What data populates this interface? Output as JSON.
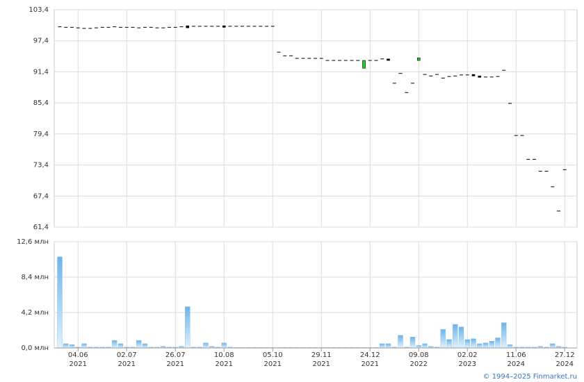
{
  "chart_data": [
    {
      "type": "candlestick",
      "open": [
        100.1,
        100.0,
        100.0,
        99.9,
        99.8,
        99.8,
        99.9,
        100.0,
        100.0,
        100.1,
        100.0,
        100.0,
        100.0,
        99.9,
        100.0,
        100.0,
        99.9,
        99.9,
        100.0,
        100.0,
        100.1,
        100.3,
        100.2,
        100.2,
        100.2,
        100.2,
        100.2,
        100.3,
        100.2,
        100.2,
        100.2,
        100.2,
        100.2,
        100.2,
        100.2,
        100.2,
        95.2,
        94.5,
        94.5,
        94.0,
        94.0,
        94.0,
        94.0,
        94.0,
        93.6,
        93.6,
        93.6,
        93.6,
        93.6,
        93.6,
        92.1,
        93.6,
        93.6,
        93.9,
        93.9,
        89.2,
        91.1,
        87.4,
        89.2,
        93.6,
        90.9,
        90.6,
        90.9,
        90.2,
        90.5,
        90.6,
        90.8,
        90.8,
        90.9,
        90.6,
        90.4,
        90.4,
        90.5,
        91.7,
        85.3,
        79.1,
        79.1,
        74.5,
        74.5,
        72.2,
        72.2,
        69.2,
        64.5,
        72.5
      ],
      "close": [
        100.1,
        100.0,
        100.0,
        99.9,
        99.8,
        99.8,
        99.9,
        100.0,
        100.0,
        100.1,
        100.0,
        100.0,
        100.0,
        99.9,
        100.0,
        100.0,
        99.9,
        99.9,
        100.0,
        100.0,
        100.1,
        99.9,
        100.2,
        100.2,
        100.2,
        100.2,
        100.2,
        100.0,
        100.2,
        100.2,
        100.2,
        100.2,
        100.2,
        100.2,
        100.2,
        100.2,
        95.2,
        94.5,
        94.5,
        94.0,
        94.0,
        94.0,
        94.0,
        94.0,
        93.6,
        93.6,
        93.6,
        93.6,
        93.6,
        93.6,
        93.6,
        93.6,
        93.6,
        93.9,
        93.6,
        89.2,
        91.1,
        87.4,
        89.2,
        94.1,
        90.9,
        90.6,
        90.9,
        90.2,
        90.5,
        90.6,
        90.8,
        90.8,
        90.6,
        90.4,
        90.4,
        90.4,
        90.5,
        91.7,
        85.3,
        79.1,
        79.1,
        74.5,
        74.5,
        72.2,
        72.2,
        69.2,
        64.5,
        72.5
      ],
      "up_color": "#22cc22",
      "down_color": "#000000",
      "ylim": [
        61.4,
        103.4
      ],
      "yticks": [
        {
          "value": 61.4,
          "label": "61,4"
        },
        {
          "value": 67.4,
          "label": "67,4"
        },
        {
          "value": 73.4,
          "label": "73,4"
        },
        {
          "value": 79.4,
          "label": "79,4"
        },
        {
          "value": 85.4,
          "label": "85,4"
        },
        {
          "value": 91.4,
          "label": "91,4"
        },
        {
          "value": 97.4,
          "label": "97,4"
        },
        {
          "value": 103.4,
          "label": "103,4"
        }
      ],
      "grid": true
    },
    {
      "type": "bar",
      "categories": [
        null,
        null,
        null,
        [
          "04.06",
          "2021"
        ],
        null,
        null,
        null,
        null,
        null,
        null,
        null,
        [
          "02.07",
          "2021"
        ],
        null,
        null,
        null,
        null,
        null,
        null,
        null,
        [
          "26.07",
          "2021"
        ],
        null,
        null,
        null,
        null,
        null,
        null,
        null,
        [
          "10.08",
          "2021"
        ],
        null,
        null,
        null,
        null,
        null,
        null,
        null,
        [
          "05.10",
          "2021"
        ],
        null,
        null,
        null,
        null,
        null,
        null,
        null,
        [
          "29.11",
          "2021"
        ],
        null,
        null,
        null,
        null,
        null,
        null,
        null,
        [
          "24.12",
          "2021"
        ],
        null,
        null,
        null,
        null,
        null,
        null,
        null,
        [
          "09.08",
          "2022"
        ],
        null,
        null,
        null,
        null,
        null,
        null,
        null,
        [
          "02.02",
          "2023"
        ],
        null,
        null,
        null,
        null,
        null,
        null,
        null,
        [
          "11.06",
          "2024"
        ],
        null,
        null,
        null,
        null,
        null,
        null,
        null,
        [
          "27.12",
          "2024"
        ]
      ],
      "values": [
        10.8,
        0.5,
        0.4,
        0.1,
        0.5,
        0.1,
        0.1,
        0.1,
        0.1,
        0.9,
        0.5,
        0.1,
        0.1,
        0.9,
        0.5,
        0.1,
        0.1,
        0.2,
        0.1,
        0.1,
        0.2,
        4.9,
        0.1,
        0.1,
        0.6,
        0.2,
        0.1,
        0.6,
        0.1,
        0.05,
        0.05,
        0.05,
        0.05,
        0.05,
        0.05,
        0.05,
        0.05,
        0.05,
        0.05,
        0.05,
        0.05,
        0.05,
        0.05,
        0.05,
        0.05,
        0.05,
        0.05,
        0.05,
        0.05,
        0.05,
        0.05,
        0.05,
        0.05,
        0.5,
        0.5,
        0.1,
        1.5,
        0.1,
        1.3,
        0.3,
        0.5,
        0.2,
        0.1,
        2.2,
        1.0,
        2.8,
        2.5,
        1.0,
        1.1,
        0.5,
        0.6,
        0.8,
        1.2,
        3.0,
        0.4,
        0.1,
        0.1,
        0.1,
        0.1,
        0.2,
        0.1,
        0.5,
        0.2,
        0.1
      ],
      "color": "#6cb4ea",
      "ylim": [
        0,
        12.6
      ],
      "yticks": [
        {
          "value": 0,
          "label": "0,0 млн"
        },
        {
          "value": 4.2,
          "label": "4,2 млн"
        },
        {
          "value": 8.4,
          "label": "8,4 млн"
        },
        {
          "value": 12.6,
          "label": "12,6 млн"
        }
      ],
      "grid": true
    }
  ],
  "copyright": "© 1994–2025 Finmarket.ru"
}
